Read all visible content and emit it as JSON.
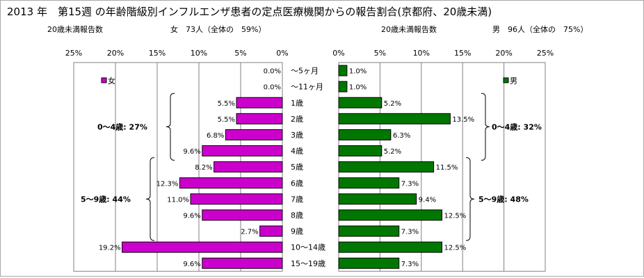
{
  "title": "2013 年　第15週 の年齢階級別インフルエンザ患者の定点医療機関からの報告割合(京都府、20歳未満)",
  "left_header": {
    "label": "20歳未満報告数",
    "summary": "女　73人（全体の　59%）"
  },
  "right_header": {
    "label": "20歳未満報告数",
    "summary": "男　96人（全体の　75%）"
  },
  "chart_data": [
    {
      "type": "bar",
      "orientation": "horizontal",
      "direction": "right-to-left",
      "series": [
        {
          "name": "女",
          "values": [
            0.0,
            0.0,
            5.5,
            5.5,
            6.8,
            9.6,
            8.2,
            12.3,
            11.0,
            9.6,
            2.7,
            19.2,
            9.6
          ],
          "color": "#cc00cc"
        }
      ],
      "value_labels": [
        "0.0%",
        "0.0%",
        "5.5%",
        "5.5%",
        "6.8%",
        "9.6%",
        "8.2%",
        "12.3%",
        "11.0%",
        "9.6%",
        "2.7%",
        "19.2%",
        "9.6%"
      ],
      "xlim": [
        0,
        25
      ],
      "ticks": [
        "25%",
        "20%",
        "15%",
        "10%",
        "5%",
        "0%"
      ],
      "tick_values": [
        25,
        20,
        15,
        10,
        5,
        0
      ],
      "legend": "女",
      "legend_placement": "top-left",
      "grid": true,
      "group_annotations": [
        {
          "label": "0〜4歳:  27%",
          "from": 2,
          "to": 5
        },
        {
          "label": "5〜9歳:  44%",
          "from": 6,
          "to": 10
        }
      ]
    },
    {
      "type": "bar",
      "orientation": "horizontal",
      "direction": "left-to-right",
      "series": [
        {
          "name": "男",
          "values": [
            1.0,
            1.0,
            5.2,
            13.5,
            6.3,
            5.2,
            11.5,
            7.3,
            9.4,
            12.5,
            7.3,
            12.5,
            7.3
          ],
          "color": "#007700"
        }
      ],
      "value_labels": [
        "1.0%",
        "1.0%",
        "5.2%",
        "13.5%",
        "6.3%",
        "5.2%",
        "11.5%",
        "7.3%",
        "9.4%",
        "12.5%",
        "7.3%",
        "12.5%",
        "7.3%"
      ],
      "xlim": [
        0,
        25
      ],
      "ticks": [
        "0%",
        "5%",
        "10%",
        "15%",
        "20%",
        "25%"
      ],
      "tick_values": [
        0,
        5,
        10,
        15,
        20,
        25
      ],
      "legend": "男",
      "legend_placement": "top-right",
      "grid": true,
      "group_annotations": [
        {
          "label": "0〜4歳:  32%",
          "from": 2,
          "to": 5
        },
        {
          "label": "5〜9歳:  48%",
          "from": 6,
          "to": 10
        }
      ]
    }
  ],
  "categories": [
    "〜5ヶ月",
    "〜11ヶ月",
    "1歳",
    "2歳",
    "3歳",
    "4歳",
    "5歳",
    "6歳",
    "7歳",
    "8歳",
    "9歳",
    "10〜14歳",
    "15〜19歳"
  ]
}
